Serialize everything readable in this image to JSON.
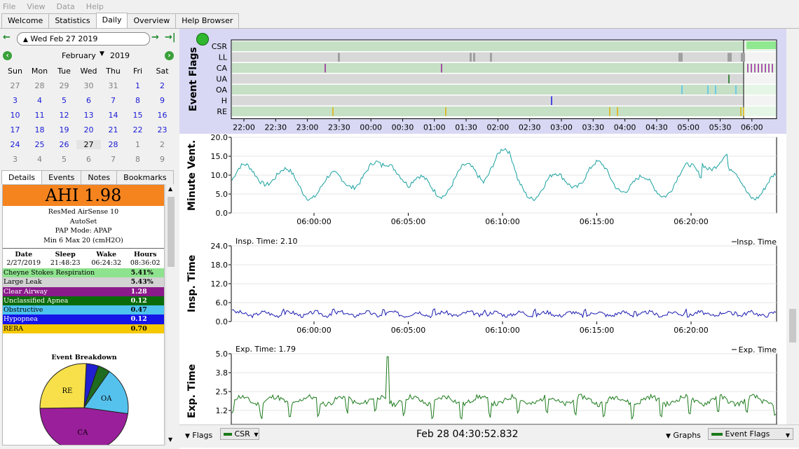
{
  "menu": [
    "File",
    "View",
    "Data",
    "Help"
  ],
  "tabs": [
    {
      "label": "Welcome",
      "active": false
    },
    {
      "label": "Statistics",
      "active": false
    },
    {
      "label": "Daily",
      "active": true
    },
    {
      "label": "Overview",
      "active": false
    },
    {
      "label": "Help Browser",
      "active": false
    }
  ],
  "date_nav": {
    "current": "Wed Feb 27 2019"
  },
  "calendar": {
    "month": "February",
    "year": "2019",
    "weekdays": [
      "Sun",
      "Mon",
      "Tue",
      "Wed",
      "Thu",
      "Fri",
      "Sat"
    ],
    "weeks": [
      [
        {
          "d": "27",
          "s": "dim"
        },
        {
          "d": "28",
          "s": "dim"
        },
        {
          "d": "29",
          "s": "dim"
        },
        {
          "d": "30",
          "s": "dim"
        },
        {
          "d": "31",
          "s": "dim"
        },
        {
          "d": "1",
          "s": "blue"
        },
        {
          "d": "2",
          "s": "blue"
        }
      ],
      [
        {
          "d": "3",
          "s": "blue"
        },
        {
          "d": "4",
          "s": "blue"
        },
        {
          "d": "5",
          "s": "blue"
        },
        {
          "d": "6",
          "s": "blue"
        },
        {
          "d": "7",
          "s": "blue"
        },
        {
          "d": "8",
          "s": "blue"
        },
        {
          "d": "9",
          "s": "blue"
        }
      ],
      [
        {
          "d": "10",
          "s": "blue"
        },
        {
          "d": "11",
          "s": "blue"
        },
        {
          "d": "12",
          "s": "blue"
        },
        {
          "d": "13",
          "s": "blue"
        },
        {
          "d": "14",
          "s": "blue"
        },
        {
          "d": "15",
          "s": "blue"
        },
        {
          "d": "16",
          "s": "blue"
        }
      ],
      [
        {
          "d": "17",
          "s": "blue"
        },
        {
          "d": "18",
          "s": "blue"
        },
        {
          "d": "19",
          "s": "blue"
        },
        {
          "d": "20",
          "s": "blue"
        },
        {
          "d": "21",
          "s": "blue"
        },
        {
          "d": "22",
          "s": "blue"
        },
        {
          "d": "23",
          "s": "blue"
        }
      ],
      [
        {
          "d": "24",
          "s": "blue"
        },
        {
          "d": "25",
          "s": "blue"
        },
        {
          "d": "26",
          "s": "blue"
        },
        {
          "d": "27",
          "s": "sel"
        },
        {
          "d": "28",
          "s": "blue"
        },
        {
          "d": "1",
          "s": "dim"
        },
        {
          "d": "2",
          "s": "dim"
        }
      ],
      [
        {
          "d": "3",
          "s": "dim"
        },
        {
          "d": "4",
          "s": "dim"
        },
        {
          "d": "5",
          "s": "dim"
        },
        {
          "d": "6",
          "s": "dim"
        },
        {
          "d": "7",
          "s": "dim"
        },
        {
          "d": "8",
          "s": "dim"
        },
        {
          "d": "9",
          "s": "dim"
        }
      ]
    ]
  },
  "left_tabs": [
    {
      "label": "Details",
      "active": true
    },
    {
      "label": "Events",
      "active": false
    },
    {
      "label": "Notes",
      "active": false
    },
    {
      "label": "Bookmarks",
      "active": false
    }
  ],
  "details": {
    "ahi": "AHI 1.98",
    "machine": "ResMed AirSense 10",
    "mode": "AutoSet",
    "pap_mode": "PAP Mode: APAP",
    "pressure": "Min 6 Max 20 (cmH2O)",
    "headers": [
      "Date",
      "Sleep",
      "Wake",
      "Hours"
    ],
    "values": [
      "2/27/2019",
      "21:48:23",
      "06:24:32",
      "08:36:02"
    ],
    "events": [
      {
        "name": "Cheyne Stokes Respiration",
        "value": "5.41%",
        "bg": "#8ee38e",
        "fg": "#000"
      },
      {
        "name": "Large Leak",
        "value": "5.43%",
        "bg": "#d3d3d3",
        "fg": "#000"
      },
      {
        "name": "Clear Airway",
        "value": "1.28",
        "bg": "#8b1a8b",
        "fg": "#fff"
      },
      {
        "name": "Unclassified Apnea",
        "value": "0.12",
        "bg": "#0b6b0b",
        "fg": "#fff"
      },
      {
        "name": "Obstructive",
        "value": "0.47",
        "bg": "#4ec3ef",
        "fg": "#000"
      },
      {
        "name": "Hypopnea",
        "value": "0.12",
        "bg": "#1515e8",
        "fg": "#fff"
      },
      {
        "name": "RERA",
        "value": "0.70",
        "bg": "#f5c800",
        "fg": "#000"
      }
    ],
    "breakdown_title": "Event Breakdown",
    "pie": [
      {
        "label": "",
        "value": 0.12,
        "color": "#2020d0"
      },
      {
        "label": "",
        "value": 0.12,
        "color": "#1f6b1f"
      },
      {
        "label": "OA",
        "value": 0.47,
        "color": "#55c2ee"
      },
      {
        "label": "CA",
        "value": 1.28,
        "color": "#9a1f9a"
      },
      {
        "label": "RE",
        "value": 0.7,
        "color": "#f7e04a"
      }
    ]
  },
  "event_flags": {
    "title": "Event Flags",
    "rows": [
      "CSR",
      "LL",
      "CA",
      "UA",
      "OA",
      "H",
      "RE"
    ],
    "xticks": [
      "22:00",
      "22:30",
      "23:00",
      "23:30",
      "00:00",
      "00:30",
      "01:00",
      "01:30",
      "02:00",
      "02:30",
      "03:00",
      "03:30",
      "04:00",
      "04:30",
      "05:00",
      "05:30",
      "06:00"
    ]
  },
  "charts": [
    {
      "ylabel": "Minute Vent.",
      "yticks": [
        "20.0",
        "15.0",
        "10.0",
        "5.0",
        "0.0"
      ],
      "xticks": [
        "06:00:00",
        "06:05:00",
        "06:10:00",
        "06:15:00",
        "06:20:00"
      ],
      "color": "#1aa0a0",
      "corner_label": "",
      "legend": ""
    },
    {
      "ylabel": "Insp. Time",
      "yticks": [
        "24.0",
        "18.0",
        "12.0",
        "6.0",
        "0.0"
      ],
      "xticks": [
        "06:00:00",
        "06:05:00",
        "06:10:00",
        "06:15:00",
        "06:20:00"
      ],
      "color": "#1a1ab0",
      "corner_label": "Insp. Time: 2.10",
      "legend": "Insp. Time"
    },
    {
      "ylabel": "Exp. Time",
      "yticks": [
        "5.0",
        "3.8",
        "2.5",
        "1.2"
      ],
      "xticks": [],
      "color": "#1b7a1b",
      "corner_label": "Exp. Time: 1.79",
      "legend": "Exp. Time"
    }
  ],
  "bottom": {
    "flags_label": "Flags",
    "csr_select": "CSR",
    "timestamp": "Feb 28 04:30:52.832",
    "graphs_label": "Graphs",
    "graphs_select": "Event Flags"
  }
}
